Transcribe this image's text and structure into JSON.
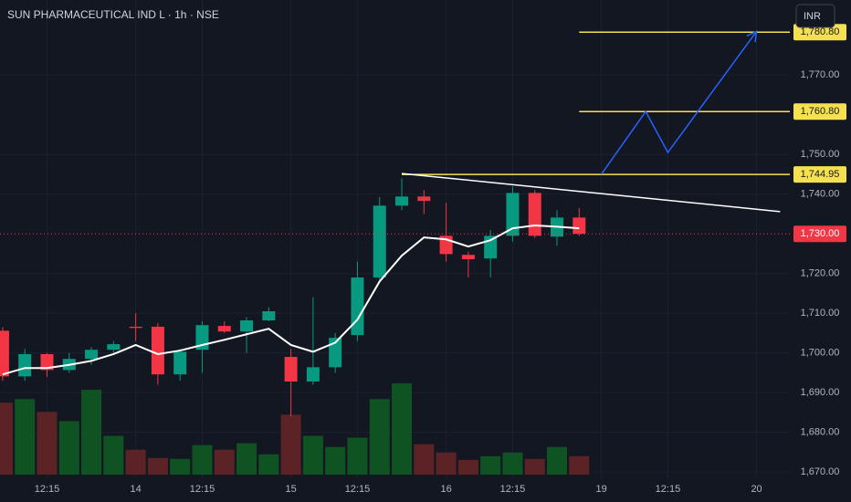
{
  "chart_data": {
    "type": "candlestick",
    "title": "SUN PHARMACEUTICAL IND L · 1h · NSE",
    "currency": "INR",
    "up_color": "#089981",
    "down_color": "#f23645",
    "up_volume_color": "#0f5323",
    "down_volume_color": "#5c2327",
    "ma_color": "#ffffff",
    "open": [
      1705.6,
      1694.1,
      1699.7,
      1695.7,
      1698.5,
      1700.8,
      1706.6,
      1706.6,
      1694.6,
      1700.8,
      1706.8,
      1705.4,
      1708.2,
      1699.0,
      1692.8,
      1696.4,
      1704.5,
      1719.0,
      1737.1,
      1739.4,
      1729.5,
      1724.7,
      1723.8,
      1729.5,
      1740.3,
      1729.3,
      1734.1
    ],
    "high": [
      1706.5,
      1701,
      1700,
      1700,
      1701.5,
      1703,
      1710,
      1707.5,
      1701,
      1708,
      1708,
      1709,
      1711.5,
      1701,
      1714,
      1705,
      1723,
      1739.3,
      1744,
      1741,
      1737.8,
      1725.5,
      1731,
      1742,
      1741,
      1736,
      1736.5
    ],
    "low": [
      1693,
      1693,
      1694,
      1695,
      1697,
      1700,
      1703,
      1692,
      1693,
      1695,
      1705,
      1700,
      1708,
      1684,
      1692,
      1695,
      1703,
      1718,
      1736,
      1735,
      1723,
      1719,
      1719,
      1728,
      1729,
      1727,
      1729.5
    ],
    "close": [
      1694.1,
      1699.7,
      1695.7,
      1698.5,
      1700.8,
      1702.2,
      1706.3,
      1694.6,
      1700.3,
      1707.0,
      1705.4,
      1708.2,
      1710.5,
      1692.8,
      1696.4,
      1703.8,
      1719.0,
      1737.1,
      1739.4,
      1738.3,
      1724.9,
      1723.6,
      1729.5,
      1740.3,
      1729.5,
      1734.1,
      1730.0
    ],
    "volume": [
      78,
      82,
      68,
      58,
      92,
      42,
      27,
      18,
      17,
      32,
      27,
      34,
      22,
      65,
      42,
      30,
      40,
      82,
      99,
      33,
      24,
      16,
      20,
      24,
      17,
      30,
      20
    ],
    "ma": [
      1694.6,
      1696.2,
      1696.2,
      1697,
      1698,
      1699.7,
      1702,
      1699.7,
      1700.6,
      1702,
      1703.3,
      1704.7,
      1706.1,
      1702,
      1700.3,
      1702.6,
      1708.4,
      1718,
      1724.5,
      1729.1,
      1728.6,
      1726.8,
      1728.4,
      1731.4,
      1732.1,
      1731.8,
      1731.4
    ],
    "xlim": [
      -0.12,
      35.5
    ],
    "ylim": [
      1668.2,
      1788.9
    ],
    "xticks": [
      {
        "value": 2,
        "label": "12:15"
      },
      {
        "value": 6,
        "label": "14"
      },
      {
        "value": 9,
        "label": "12:15"
      },
      {
        "value": 13,
        "label": "15"
      },
      {
        "value": 16,
        "label": "12:15"
      },
      {
        "value": 20,
        "label": "16"
      },
      {
        "value": 23,
        "label": "12:15"
      },
      {
        "value": 27,
        "label": "19"
      },
      {
        "value": 30,
        "label": "12:15"
      },
      {
        "value": 34,
        "label": "20"
      }
    ],
    "yticks": [
      {
        "value": 1670,
        "label": "1,670.00"
      },
      {
        "value": 1680,
        "label": "1,680.00"
      },
      {
        "value": 1690,
        "label": "1,690.00"
      },
      {
        "value": 1700,
        "label": "1,700.00"
      },
      {
        "value": 1710,
        "label": "1,710.00"
      },
      {
        "value": 1720,
        "label": "1,720.00"
      },
      {
        "value": 1740,
        "label": "1,740.00"
      },
      {
        "value": 1750,
        "label": "1,750.00"
      },
      {
        "value": 1770,
        "label": "1,770.00"
      }
    ],
    "grid": true,
    "hlines": [
      {
        "value": 1780.8,
        "label": "1,780.80",
        "from": 26,
        "color": "#f5e050"
      },
      {
        "value": 1760.8,
        "label": "1,760.80",
        "from": 26,
        "color": "#f5e050"
      },
      {
        "value": 1744.95,
        "label": "1,744.95",
        "from": 18,
        "color": "#f5e050"
      }
    ],
    "last_price": {
      "value": 1730.0,
      "label": "1,730.00",
      "color": "#f23645"
    },
    "trendline": {
      "x": [
        18,
        35.06
      ],
      "y": [
        1745.2,
        1735.6
      ],
      "color": "#ffffff"
    },
    "arrow": {
      "x": [
        27,
        29,
        30,
        34
      ],
      "y": [
        1745,
        1760.8,
        1750.5,
        1781
      ],
      "color": "#2962ff"
    }
  }
}
